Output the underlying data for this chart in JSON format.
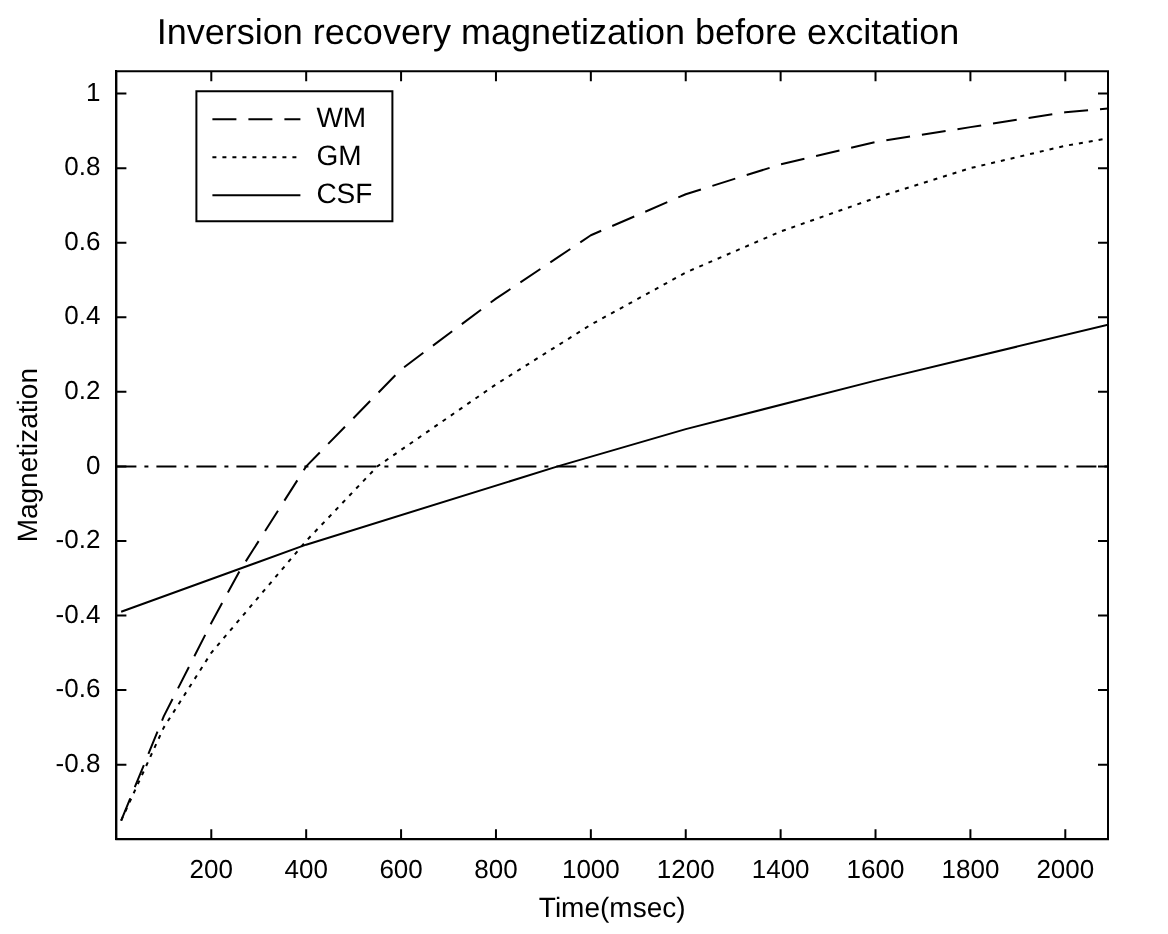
{
  "chart_data": {
    "type": "line",
    "title": "Inversion recovery magnetization before excitation",
    "xlabel": "Time(msec)",
    "ylabel": "Magnetization",
    "xlim": [
      0,
      2090
    ],
    "ylim": [
      -1,
      1.06
    ],
    "xticks": [
      200,
      400,
      600,
      800,
      1000,
      1200,
      1400,
      1600,
      1800,
      2000
    ],
    "yticks": [
      -0.8,
      -0.6,
      -0.4,
      -0.2,
      0,
      0.2,
      0.4,
      0.6,
      0.8,
      1
    ],
    "grid": false,
    "legend": "top left",
    "marker": "none",
    "ref_lines": [
      {
        "axis": "y",
        "value": 0,
        "line_style": "dashdot",
        "color": "#000000"
      }
    ],
    "series": [
      {
        "name": "WM",
        "color": "#000000",
        "line_style": "dashed",
        "x": [
          10,
          100,
          200,
          260,
          400,
          600,
          800,
          1000,
          1200,
          1400,
          1600,
          1800,
          2000,
          2090
        ],
        "values": [
          -0.95,
          -0.67,
          -0.42,
          -0.28,
          0,
          0.26,
          0.45,
          0.62,
          0.73,
          0.81,
          0.87,
          0.91,
          0.95,
          0.96
        ]
      },
      {
        "name": "GM",
        "color": "#000000",
        "line_style": "dotted",
        "x": [
          10,
          100,
          200,
          400,
          550,
          800,
          1000,
          1200,
          1400,
          1600,
          1800,
          2000,
          2090
        ],
        "values": [
          -0.95,
          -0.7,
          -0.5,
          -0.2,
          0,
          0.22,
          0.38,
          0.52,
          0.63,
          0.72,
          0.8,
          0.86,
          0.88
        ]
      },
      {
        "name": "CSF",
        "color": "#000000",
        "line_style": "solid",
        "x": [
          10,
          400,
          930,
          1200,
          1600,
          2090
        ],
        "values": [
          -0.39,
          -0.21,
          0,
          0.1,
          0.23,
          0.38
        ]
      }
    ]
  }
}
